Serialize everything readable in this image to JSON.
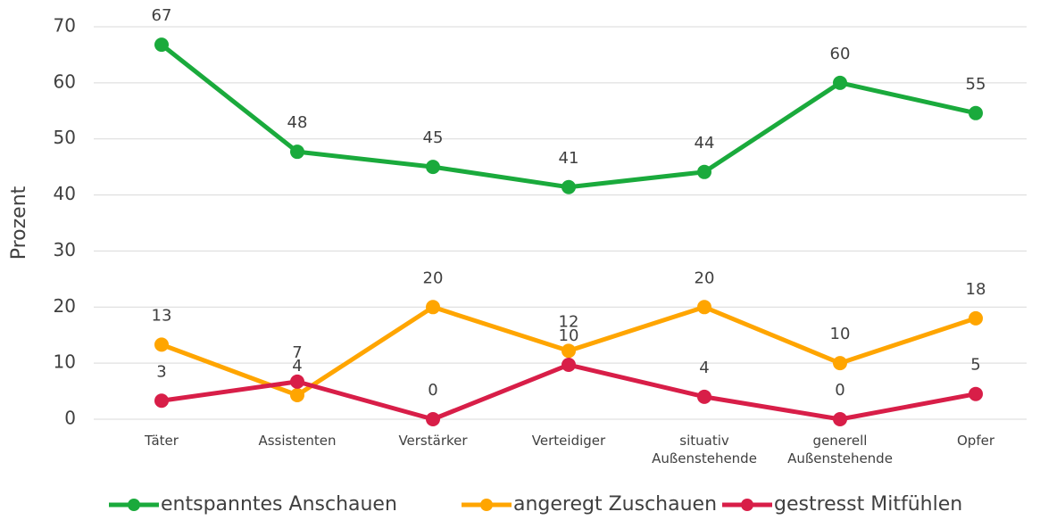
{
  "chart_data": {
    "type": "line",
    "y_axis_label": "Prozent",
    "categories": [
      "Täter",
      "Assistenten",
      "Verstärker",
      "Verteidiger",
      "situativ Außenstehende",
      "generell Außenstehende",
      "Opfer"
    ],
    "series": [
      {
        "name": "entspanntes Anschauen",
        "color": "#1aaa3c",
        "values": [
          66.8,
          47.7,
          45.0,
          41.4,
          44.1,
          60.0,
          54.6
        ],
        "value_labels": [
          "67",
          "48",
          "45",
          "41",
          "44",
          "60",
          "55"
        ]
      },
      {
        "name": "angeregt Zuschauen",
        "color": "#ffa500",
        "values": [
          13.3,
          4.3,
          20.0,
          12.2,
          20.0,
          10.0,
          18.0
        ],
        "value_labels": [
          "13",
          "4",
          "20",
          "12",
          "20",
          "10",
          "18"
        ]
      },
      {
        "name": "gestresst Mitfühlen",
        "color": "#d81e48",
        "values": [
          3.3,
          6.7,
          0,
          9.7,
          4.0,
          0,
          4.5
        ],
        "value_labels": [
          "3",
          "7",
          "0",
          "10",
          "4",
          "0",
          "5"
        ]
      }
    ],
    "ylim": [
      0,
      70
    ],
    "yticks": [
      0,
      10,
      20,
      30,
      40,
      50,
      60,
      70
    ],
    "grid": true,
    "legend": "bottom"
  }
}
